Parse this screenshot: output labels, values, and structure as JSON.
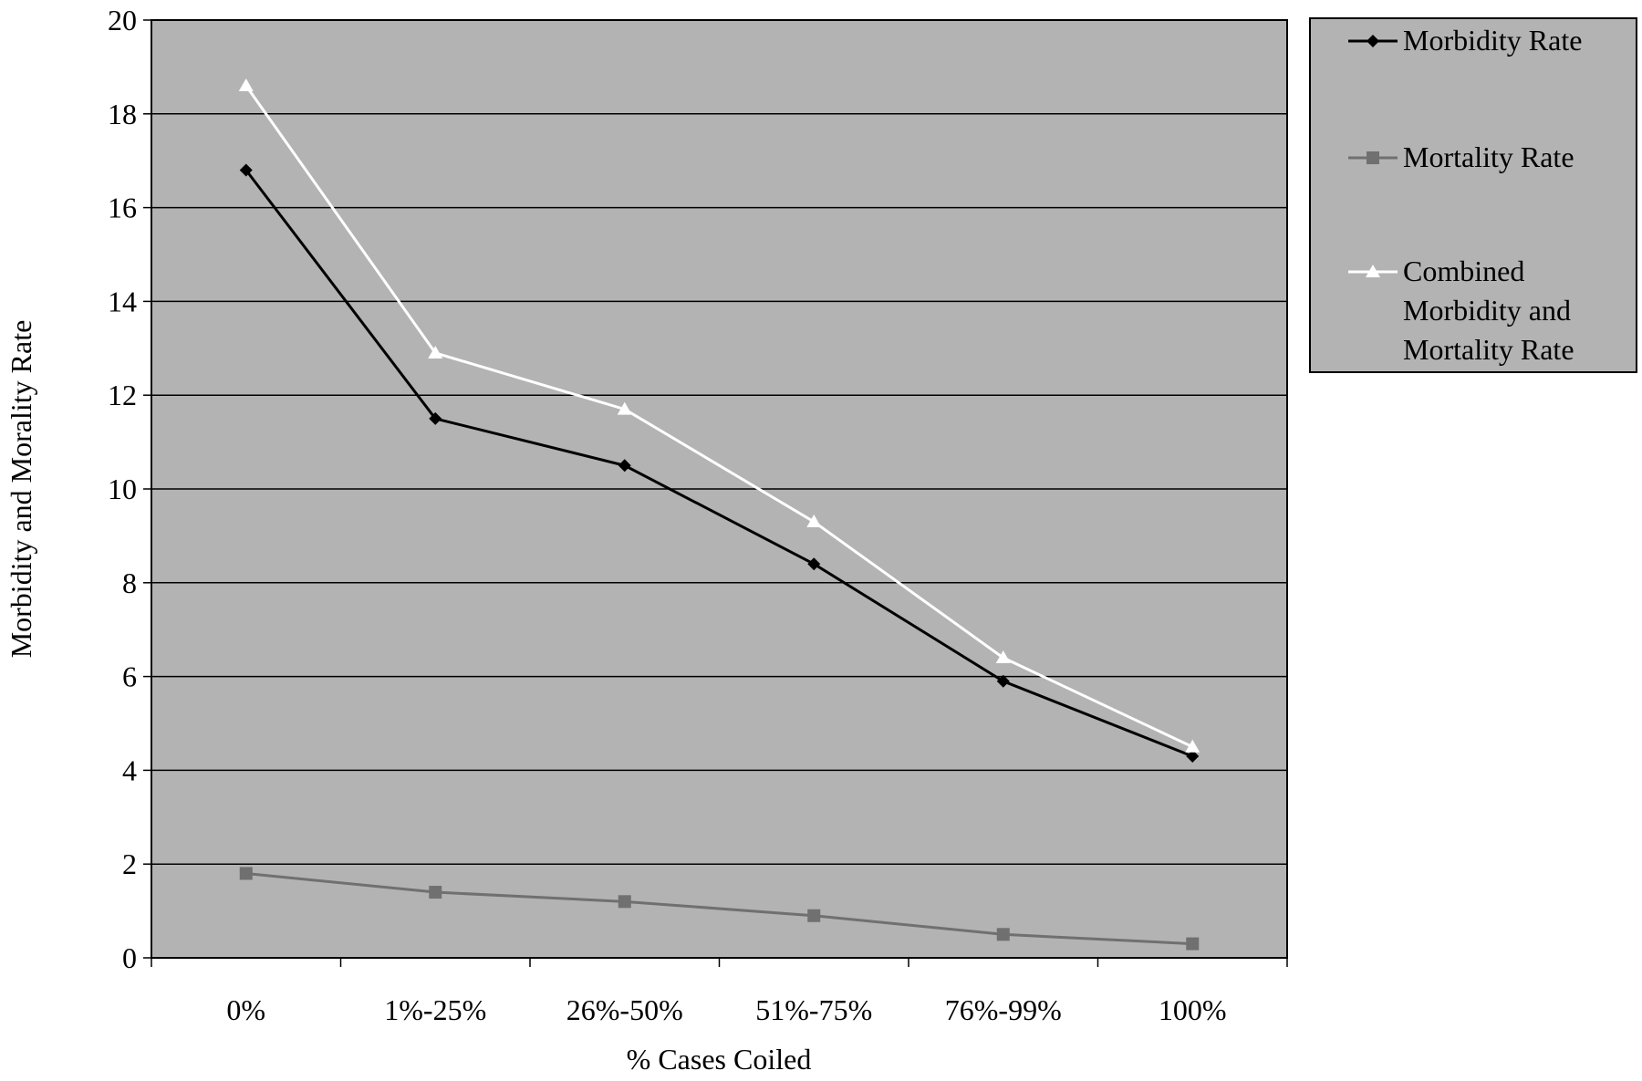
{
  "chart_data": {
    "type": "line",
    "title": "",
    "xlabel": "% Cases Coiled",
    "ylabel": "Morbidity and Morality Rate",
    "categories": [
      "0%",
      "1%-25%",
      "26%-50%",
      "51%-75%",
      "76%-99%",
      "100%"
    ],
    "ylim": [
      0,
      20
    ],
    "yticks": [
      "0",
      "2",
      "4",
      "6",
      "8",
      "10",
      "12",
      "14",
      "16",
      "18",
      "20"
    ],
    "grid": true,
    "legend_position": "right",
    "plot_background": "#b3b3b3",
    "series": [
      {
        "name": "Morbidity Rate",
        "values": [
          16.8,
          11.5,
          10.5,
          8.4,
          5.9,
          4.3
        ],
        "color": "#000000",
        "marker": "diamond"
      },
      {
        "name": "Mortality Rate",
        "values": [
          1.8,
          1.4,
          1.2,
          0.9,
          0.5,
          0.3
        ],
        "color": "#707070",
        "marker": "square"
      },
      {
        "name": "Combined Morbidity and Mortality Rate",
        "values": [
          18.6,
          12.9,
          11.7,
          9.3,
          6.4,
          4.5
        ],
        "color": "#ffffff",
        "marker": "triangle",
        "legend_lines": [
          "Combined",
          "Morbidity and",
          "Mortality Rate"
        ]
      }
    ]
  }
}
